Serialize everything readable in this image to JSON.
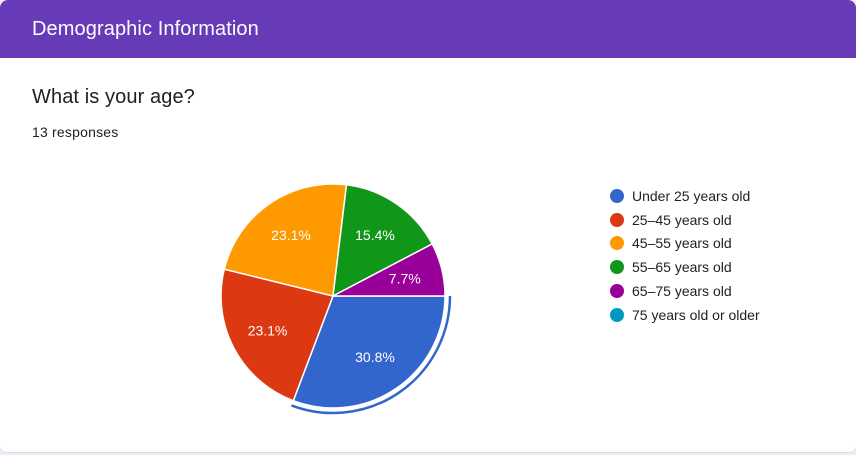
{
  "header": {
    "title": "Demographic Information"
  },
  "question": {
    "title": "What is your age?",
    "responses": "13 responses"
  },
  "chart_data": {
    "type": "pie",
    "categories": [
      "Under 25 years old",
      "25–45 years old",
      "45–55 years old",
      "55–65 years old",
      "65–75 years old",
      "75 years old or older"
    ],
    "values": [
      30.8,
      23.1,
      23.1,
      15.4,
      7.7,
      0
    ],
    "labels": [
      "30.8%",
      "23.1%",
      "23.1%",
      "15.4%",
      "7.7%",
      ""
    ],
    "colors": [
      "#3366cc",
      "#dc3912",
      "#ff9900",
      "#109618",
      "#990099",
      "#0099c6"
    ],
    "highlighted_slice": "Under 25 years old",
    "legend_position": "right"
  }
}
